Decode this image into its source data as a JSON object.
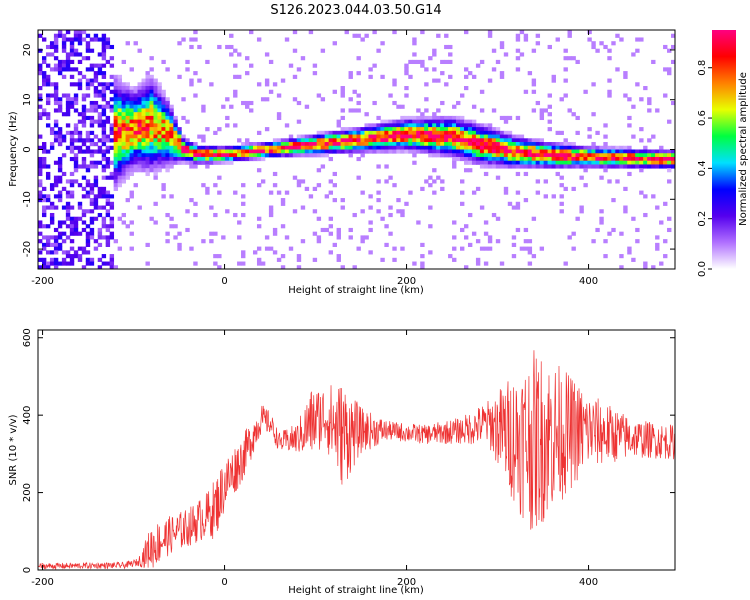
{
  "figure": {
    "title": "S126.2023.044.03.50.G14"
  },
  "chart_data": [
    {
      "type": "heatmap",
      "xlabel": "Height of straight line (km)",
      "ylabel": "Frequency (Hz)",
      "xlim": [
        -205,
        495
      ],
      "ylim": [
        -24,
        24
      ],
      "x_ticks": [
        -200,
        0,
        200,
        400
      ],
      "y_ticks": [
        -20,
        -10,
        0,
        10,
        20
      ],
      "colorbar": {
        "label": "Normalized spectral amplitude",
        "range": [
          0,
          0.95
        ],
        "ticks": [
          0.0,
          0.2,
          0.4,
          0.6,
          0.8
        ],
        "colormap": [
          "#ffffff",
          "#b070ff",
          "#5500ee",
          "#0000ff",
          "#00e0ff",
          "#00ff40",
          "#e8ff00",
          "#ff8000",
          "#ff0000",
          "#ff0080"
        ]
      },
      "ridge": {
        "x": [
          -130,
          -100,
          -80,
          -60,
          -45,
          -30,
          0,
          50,
          100,
          150,
          200,
          250,
          280,
          320,
          360,
          400,
          450,
          490
        ],
        "frequency": [
          3,
          4,
          5,
          3,
          0,
          -1,
          -1,
          0,
          1,
          2,
          3,
          2.5,
          1,
          -0.5,
          -1.2,
          -1.5,
          -1.8,
          -2
        ],
        "spread": [
          8,
          5,
          6,
          4,
          1.5,
          1.2,
          1,
          1,
          1.3,
          1.6,
          2,
          2.5,
          2.5,
          2,
          1.6,
          1.3,
          1.2,
          1.2
        ]
      },
      "noise_region_x": [
        -205,
        -120
      ],
      "grid": false
    },
    {
      "type": "line",
      "series": [
        {
          "color": "#ee3333"
        }
      ],
      "xlabel": "Height of straight line (km)",
      "ylabel": "SNR (10 * v/v)",
      "xlim": [
        -205,
        495
      ],
      "ylim": [
        0,
        620
      ],
      "x_ticks": [
        -200,
        0,
        200,
        400
      ],
      "y_ticks": [
        0,
        200,
        400,
        600
      ],
      "envelope": {
        "x": [
          -205,
          -110,
          -95,
          -80,
          -60,
          -40,
          -20,
          -10,
          0,
          20,
          40,
          50,
          60,
          80,
          95,
          110,
          130,
          150,
          180,
          220,
          260,
          290,
          320,
          340,
          360,
          400,
          450,
          495
        ],
        "mean": [
          10,
          12,
          20,
          60,
          90,
          110,
          140,
          160,
          220,
          290,
          390,
          380,
          330,
          340,
          380,
          400,
          350,
          360,
          360,
          350,
          360,
          380,
          340,
          330,
          350,
          360,
          340,
          330
        ],
        "amplitude": [
          8,
          8,
          10,
          60,
          50,
          50,
          60,
          80,
          70,
          60,
          40,
          30,
          25,
          40,
          90,
          80,
          140,
          60,
          25,
          25,
          35,
          60,
          180,
          240,
          200,
          100,
          50,
          45
        ]
      },
      "grid": false
    }
  ]
}
